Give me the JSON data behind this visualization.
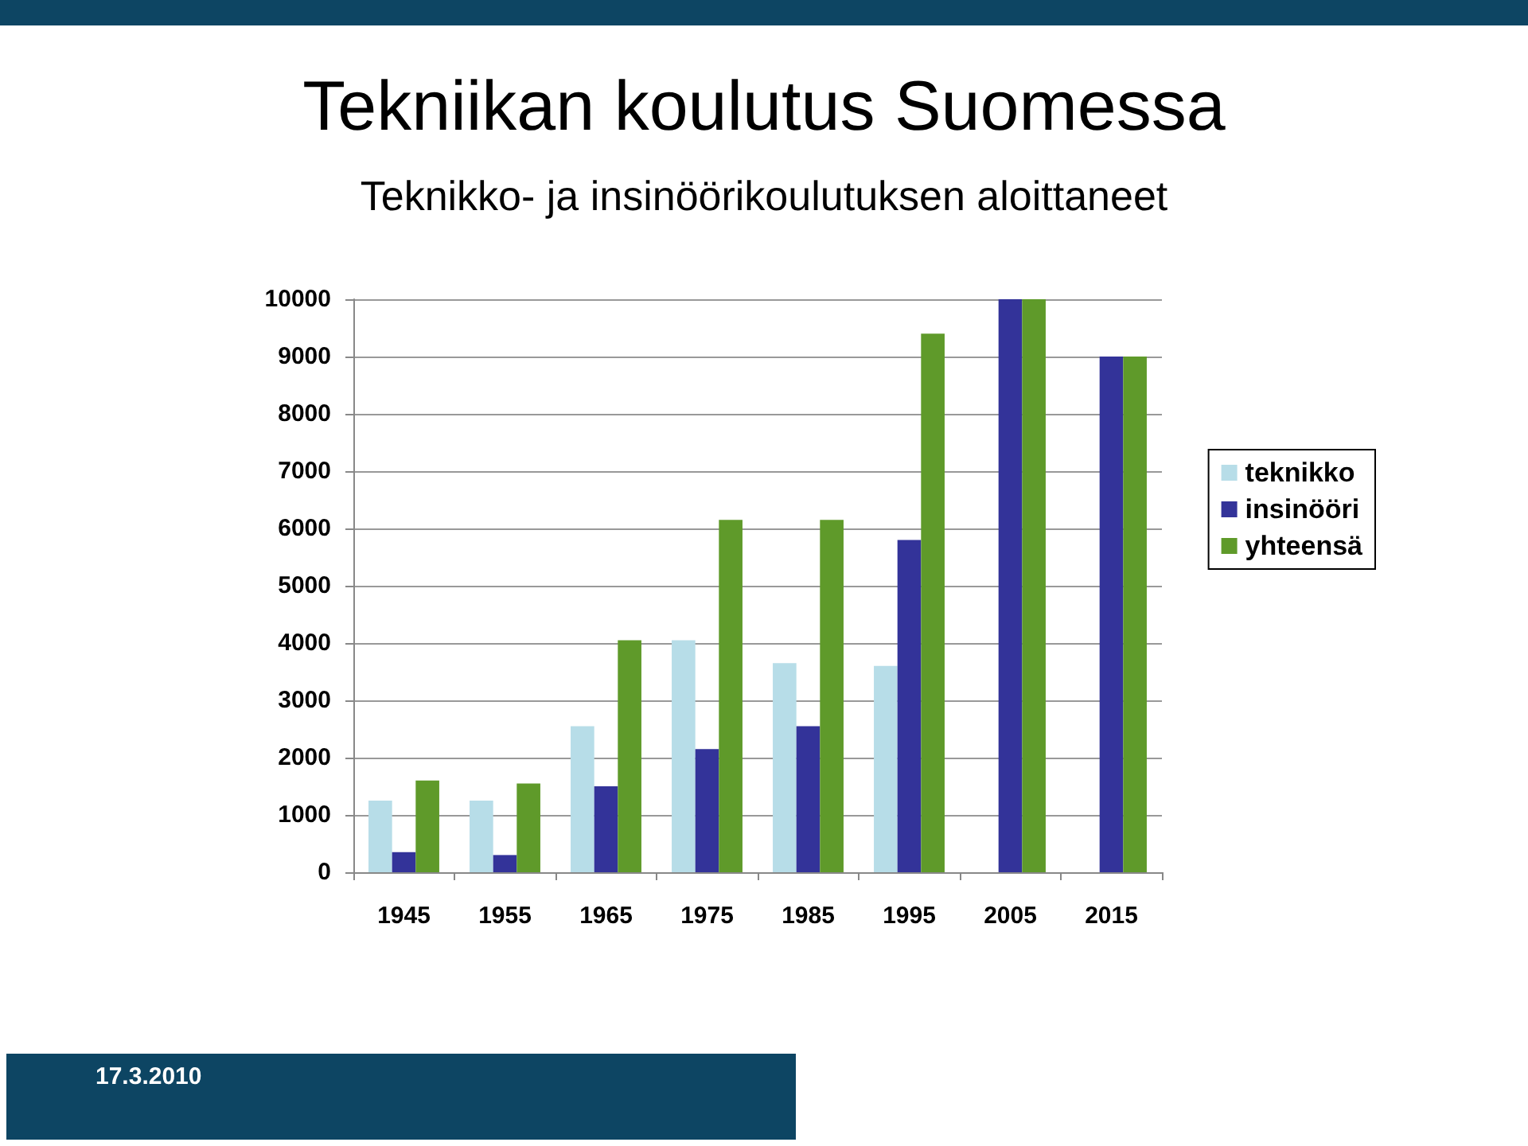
{
  "chart_data": {
    "type": "bar",
    "title": "Tekniikan koulutus Suomessa",
    "subtitle": "Teknikko- ja insinöörikoulutuksen aloittaneet",
    "categories": [
      "1945",
      "1955",
      "1965",
      "1975",
      "1985",
      "1995",
      "2005",
      "2015"
    ],
    "series": [
      {
        "name": "teknikko",
        "color": "#b7dde8",
        "values": [
          1250,
          1250,
          2550,
          4050,
          3650,
          3600,
          0,
          0
        ]
      },
      {
        "name": "insinööri",
        "color": "#333399",
        "values": [
          350,
          300,
          1500,
          2150,
          2550,
          5800,
          10000,
          9000
        ]
      },
      {
        "name": "yhteensä",
        "color": "#5f9a2a",
        "values": [
          1600,
          1550,
          4050,
          6150,
          6150,
          9400,
          10000,
          9000
        ]
      }
    ],
    "ylim": [
      0,
      10000
    ],
    "yticks": [
      0,
      1000,
      2000,
      3000,
      4000,
      5000,
      6000,
      7000,
      8000,
      9000,
      10000
    ],
    "grid": "y",
    "legend": "right",
    "annotations": [
      "17.3.2010"
    ]
  }
}
